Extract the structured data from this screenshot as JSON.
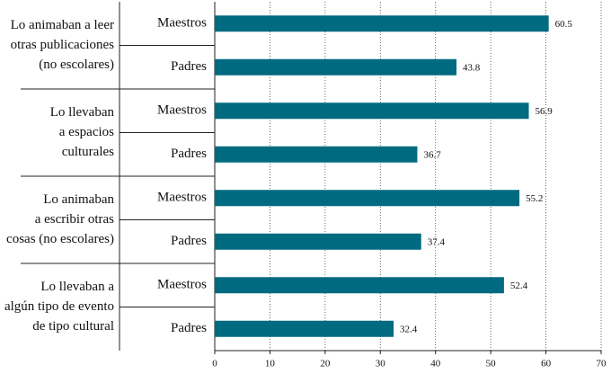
{
  "chart_data": {
    "type": "bar",
    "orientation": "horizontal",
    "categories": [
      [
        "Lo animaban a leer",
        "otras publicaciones",
        "(no escolares)"
      ],
      [
        "Lo llevaban",
        "a espacios",
        "culturales"
      ],
      [
        "Lo animaban",
        "a escribir otras",
        "cosas (no escolares)"
      ],
      [
        "Lo llevaban a",
        "algún tipo de evento",
        "de tipo cultural"
      ]
    ],
    "series": [
      {
        "name": "Maestros",
        "color": "#006a80",
        "values": [
          60.5,
          56.9,
          55.2,
          52.4
        ]
      },
      {
        "name": "Padres",
        "color": "#006a80",
        "values": [
          43.8,
          36.7,
          37.4,
          32.4
        ]
      }
    ],
    "xlim": [
      0,
      70
    ],
    "xticks": [
      0,
      10,
      20,
      30,
      40,
      50,
      60,
      70
    ],
    "grid": true
  }
}
